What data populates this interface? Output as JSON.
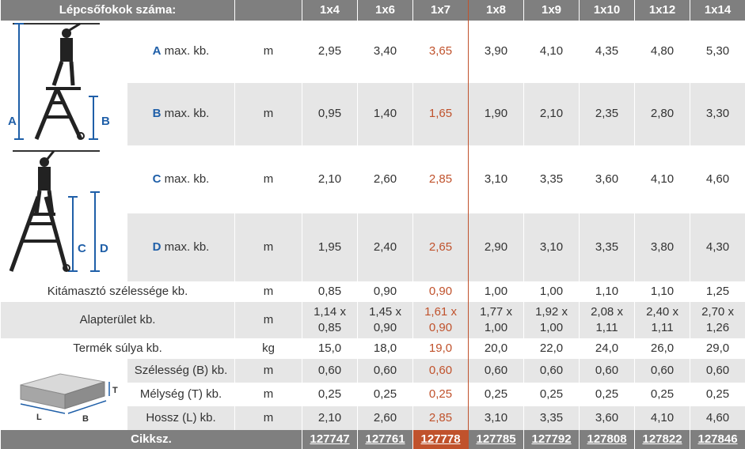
{
  "header": {
    "row_label": "Lépcsőfokok száma:",
    "columns": [
      "1x4",
      "1x6",
      "1x7",
      "1x8",
      "1x9",
      "1x10",
      "1x12",
      "1x14"
    ]
  },
  "highlight_column": "1x7",
  "figures": {
    "ladder_top_letters": [
      "A",
      "B"
    ],
    "ladder_bottom_letters": [
      "C",
      "D"
    ],
    "box_letters": [
      "T",
      "L",
      "B"
    ]
  },
  "colors": {
    "header_bg": "#7f7f7f",
    "stripe_bg": "#e6e6e6",
    "highlight": "#c0522c",
    "letter_blue": "#1f5fa8"
  },
  "rows": [
    {
      "letter": "A",
      "label": "max. kb.",
      "unit": "m",
      "values": [
        "2,95",
        "3,40",
        "3,65",
        "3,90",
        "4,10",
        "4,35",
        "4,80",
        "5,30"
      ]
    },
    {
      "letter": "B",
      "label": "max. kb.",
      "unit": "m",
      "values": [
        "0,95",
        "1,40",
        "1,65",
        "1,90",
        "2,10",
        "2,35",
        "2,80",
        "3,30"
      ]
    },
    {
      "letter": "C",
      "label": "max. kb.",
      "unit": "m",
      "values": [
        "2,10",
        "2,60",
        "2,85",
        "3,10",
        "3,35",
        "3,60",
        "4,10",
        "4,60"
      ]
    },
    {
      "letter": "D",
      "label": "max. kb.",
      "unit": "m",
      "values": [
        "1,95",
        "2,40",
        "2,65",
        "2,90",
        "3,10",
        "3,35",
        "3,80",
        "4,30"
      ]
    },
    {
      "label": "Kitámasztó szélessége kb.",
      "unit": "m",
      "values": [
        "0,85",
        "0,90",
        "0,90",
        "1,00",
        "1,00",
        "1,10",
        "1,10",
        "1,25"
      ]
    },
    {
      "label": "Alapterület kb.",
      "unit": "m",
      "values_top": [
        "1,14 x",
        "1,45 x",
        "1,61 x",
        "1,77 x",
        "1,92 x",
        "2,08 x",
        "2,40 x",
        "2,70 x"
      ],
      "values_bottom": [
        "0,85",
        "0,90",
        "0,90",
        "1,00",
        "1,00",
        "1,11",
        "1,11",
        "1,26"
      ]
    },
    {
      "label": "Termék súlya kb.",
      "unit": "kg",
      "values": [
        "15,0",
        "18,0",
        "19,0",
        "20,0",
        "22,0",
        "24,0",
        "26,0",
        "29,0"
      ]
    },
    {
      "label": "Szélesség (B) kb.",
      "unit": "m",
      "values": [
        "0,60",
        "0,60",
        "0,60",
        "0,60",
        "0,60",
        "0,60",
        "0,60",
        "0,60"
      ]
    },
    {
      "label": "Mélység (T) kb.",
      "unit": "m",
      "values": [
        "0,25",
        "0,25",
        "0,25",
        "0,25",
        "0,25",
        "0,25",
        "0,25",
        "0,25"
      ]
    },
    {
      "label": "Hossz (L) kb.",
      "unit": "m",
      "values": [
        "2,10",
        "2,60",
        "2,85",
        "3,10",
        "3,35",
        "3,60",
        "4,10",
        "4,60"
      ]
    }
  ],
  "footer": {
    "label": "Cikksz.",
    "codes": [
      "127747",
      "127761",
      "127778",
      "127785",
      "127792",
      "127808",
      "127822",
      "127846"
    ]
  }
}
